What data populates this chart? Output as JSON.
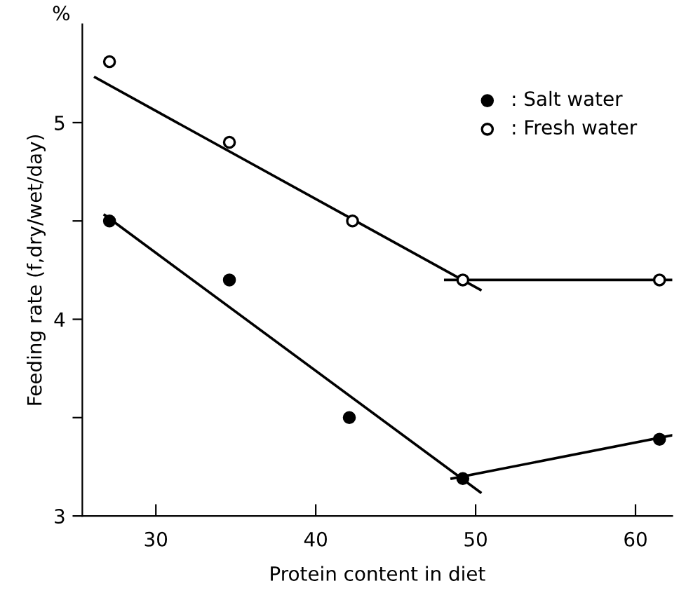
{
  "chart_data": {
    "type": "scatter",
    "xlabel": "Protein content in diet",
    "ylabel": "Feeding rate (f,dry/wet/day)",
    "annotations": [
      "%"
    ],
    "xlim": [
      25.4,
      62.3
    ],
    "ylim": [
      3,
      5.5
    ],
    "xticks": [
      30,
      40,
      50,
      60
    ],
    "yticks": [
      3,
      {
        "value": 3.5,
        "label": null
      },
      4,
      {
        "value": 4.5,
        "label": null
      },
      5
    ],
    "grid": false,
    "legend": "top right",
    "series": [
      {
        "name": ": Salt water",
        "marker": "circle",
        "color": "#000000",
        "x": [
          27.1,
          34.6,
          42.1,
          49.2,
          61.5
        ],
        "values": [
          4.5,
          4.2,
          3.5,
          3.19,
          3.39
        ]
      },
      {
        "name": ": Fresh water",
        "marker": "circle",
        "color": "#ffffff",
        "x": [
          27.1,
          34.6,
          42.3,
          49.2,
          61.5
        ],
        "values": [
          5.31,
          4.9,
          4.5,
          4.2,
          4.2
        ]
      },
      {
        "type": "line",
        "color": "#000000",
        "x": [
          26.2,
          50.3
        ],
        "values": [
          5.23,
          4.15
        ]
      },
      {
        "type": "line",
        "color": "#000000",
        "x": [
          48.1,
          62.3
        ],
        "values": [
          4.2,
          4.2
        ]
      },
      {
        "type": "line",
        "color": "#000000",
        "x": [
          26.8,
          50.3
        ],
        "values": [
          4.53,
          3.12
        ]
      },
      {
        "type": "line",
        "color": "#000000",
        "x": [
          48.5,
          62.3
        ],
        "values": [
          3.19,
          3.41
        ]
      }
    ]
  }
}
